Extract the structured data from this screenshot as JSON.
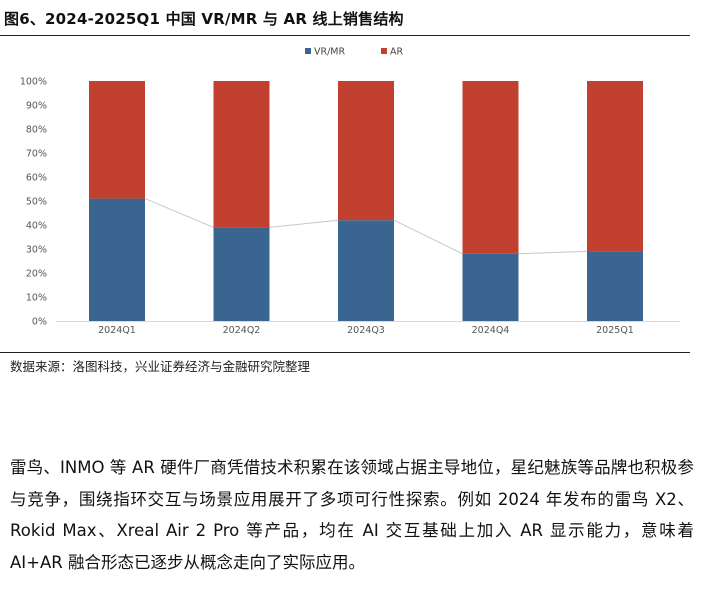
{
  "figure_title": "图6、2024-2025Q1 中国 VR/MR 与 AR 线上销售结构",
  "source": "数据来源：洛图科技，兴业证券经济与金融研究院整理",
  "paragraph": "雷鸟、INMO 等 AR 硬件厂商凭借技术积累在该领域占据主导地位，星纪魅族等品牌也积极参与竞争，围绕指环交互与场景应用展开了多项可行性探索。例如 2024 年发布的雷鸟 X2、Rokid Max、Xreal Air 2 Pro 等产品，均在 AI 交互基础上加入 AR 显示能力，意味着 AI+AR 融合形态已逐步从概念走向了实际应用。",
  "chart_data": {
    "type": "bar",
    "stacked": true,
    "percent": true,
    "categories": [
      "2024Q1",
      "2024Q2",
      "2024Q3",
      "2024Q4",
      "2025Q1"
    ],
    "series": [
      {
        "name": "VR/MR",
        "color": "#3a6591",
        "values": [
          51,
          39,
          42,
          28,
          29
        ]
      },
      {
        "name": "AR",
        "color": "#c2402f",
        "values": [
          49,
          61,
          58,
          72,
          71
        ]
      }
    ],
    "ylim": [
      0,
      100
    ],
    "yticks": [
      "0%",
      "10%",
      "20%",
      "30%",
      "40%",
      "50%",
      "60%",
      "70%",
      "80%",
      "90%",
      "100%"
    ],
    "legend_position": "top-center",
    "connector_line": true
  }
}
